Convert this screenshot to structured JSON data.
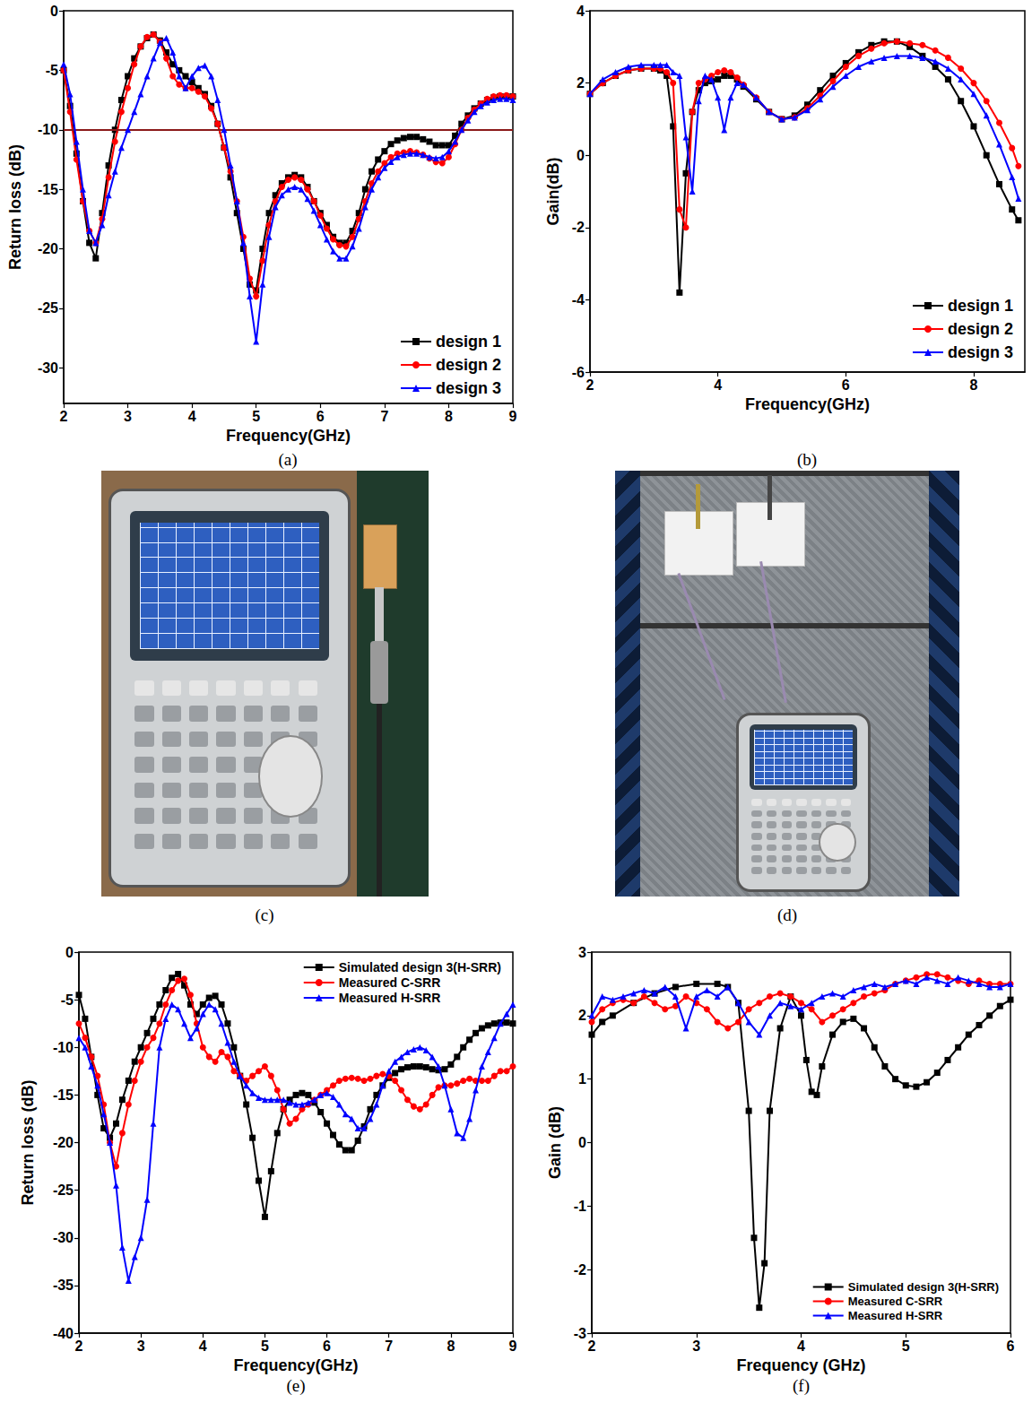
{
  "chart_data": [
    {
      "type": "line",
      "label": "(a)",
      "x_label": "Frequency(GHz)",
      "y_label": "Return loss (dB)",
      "xlim": [
        2,
        9
      ],
      "xticks": [
        2,
        3,
        4,
        5,
        6,
        7,
        8,
        9
      ],
      "ylim": [
        -33,
        0
      ],
      "yticks": [
        -30,
        -25,
        -20,
        -15,
        -10,
        -5,
        0
      ],
      "grid": false,
      "legend": "lower right",
      "reference_line": {
        "value": -10,
        "color": "#8b1a1a"
      },
      "x": [
        2,
        2.1,
        2.2,
        2.3,
        2.4,
        2.5,
        2.6,
        2.7,
        2.8,
        2.9,
        3,
        3.1,
        3.2,
        3.3,
        3.4,
        3.5,
        3.6,
        3.7,
        3.8,
        3.9,
        4,
        4.1,
        4.2,
        4.3,
        4.4,
        4.5,
        4.6,
        4.7,
        4.8,
        4.9,
        5,
        5.1,
        5.2,
        5.3,
        5.4,
        5.5,
        5.6,
        5.7,
        5.8,
        5.9,
        6,
        6.1,
        6.2,
        6.3,
        6.4,
        6.5,
        6.6,
        6.7,
        6.8,
        6.9,
        7,
        7.1,
        7.2,
        7.3,
        7.4,
        7.5,
        7.6,
        7.7,
        7.8,
        7.9,
        8,
        8.1,
        8.2,
        8.3,
        8.4,
        8.5,
        8.6,
        8.7,
        8.8,
        8.9,
        9
      ],
      "series": [
        {
          "name": "design 1",
          "color": "#000000",
          "marker": "square",
          "values": [
            -5,
            -8,
            -12,
            -16,
            -19.5,
            -20.8,
            -17,
            -13,
            -10,
            -7.5,
            -5.5,
            -4,
            -3,
            -2.3,
            -2,
            -2.5,
            -3.5,
            -4.5,
            -5,
            -5.5,
            -6,
            -6.5,
            -7,
            -8,
            -9.5,
            -11.5,
            -14,
            -17,
            -20,
            -23,
            -23.5,
            -20,
            -17,
            -15.5,
            -14.5,
            -14,
            -13.8,
            -14,
            -14.8,
            -16,
            -17,
            -18,
            -19,
            -19.5,
            -19.5,
            -18.5,
            -17,
            -15,
            -13.5,
            -12.5,
            -11.8,
            -11.2,
            -10.9,
            -10.7,
            -10.6,
            -10.6,
            -10.8,
            -11,
            -11.3,
            -11.3,
            -11.3,
            -10.5,
            -9.5,
            -8.8,
            -8.2,
            -7.8,
            -7.5,
            -7.3,
            -7.2,
            -7.2,
            -7.2
          ]
        },
        {
          "name": "design 2",
          "color": "#ff0000",
          "marker": "circle",
          "values": [
            -5,
            -8.5,
            -12.5,
            -16,
            -18.5,
            -19.5,
            -17.5,
            -14,
            -11,
            -8.5,
            -6.5,
            -4.5,
            -3,
            -2.2,
            -2,
            -2.6,
            -4,
            -5.5,
            -6.2,
            -6.5,
            -6.5,
            -6.8,
            -7.2,
            -8.2,
            -9.5,
            -11.5,
            -13.5,
            -16,
            -19,
            -22.5,
            -24,
            -21,
            -18,
            -16,
            -14.8,
            -14.2,
            -14,
            -14.2,
            -15,
            -16,
            -17.2,
            -18.3,
            -19.2,
            -19.7,
            -19.8,
            -19,
            -17.5,
            -16,
            -14.5,
            -13.5,
            -12.8,
            -12.3,
            -12,
            -11.9,
            -11.8,
            -11.9,
            -12.1,
            -12.4,
            -12.7,
            -12.8,
            -12.3,
            -11.2,
            -10,
            -9,
            -8.3,
            -7.8,
            -7.4,
            -7.2,
            -7.1,
            -7.1,
            -7.2
          ]
        },
        {
          "name": "design 3",
          "color": "#0000ff",
          "marker": "triangle",
          "values": [
            -4.5,
            -7,
            -11,
            -15,
            -18.5,
            -19.5,
            -18,
            -15.5,
            -13.5,
            -11.5,
            -10,
            -8.5,
            -7,
            -5.5,
            -4,
            -2.7,
            -2.3,
            -3.5,
            -5.5,
            -6.5,
            -5.5,
            -4.8,
            -4.6,
            -5.5,
            -7.5,
            -10,
            -13,
            -16,
            -19.5,
            -24,
            -27.8,
            -23,
            -19,
            -16.5,
            -15.5,
            -15,
            -14.8,
            -15,
            -15.8,
            -16.8,
            -18,
            -19.2,
            -20.2,
            -20.8,
            -20.8,
            -19.8,
            -18.3,
            -16.5,
            -15,
            -14,
            -13.2,
            -12.7,
            -12.3,
            -12.1,
            -12,
            -12,
            -12.1,
            -12.3,
            -12.4,
            -12.3,
            -11.8,
            -11,
            -10,
            -9.2,
            -8.5,
            -8,
            -7.7,
            -7.5,
            -7.4,
            -7.4,
            -7.5
          ]
        }
      ]
    },
    {
      "type": "line",
      "label": "(b)",
      "x_label": "Frequency(GHz)",
      "y_label": "Gain(dB)",
      "xlim": [
        2,
        8.8
      ],
      "xticks": [
        2,
        4,
        6,
        8
      ],
      "ylim": [
        -6,
        4
      ],
      "yticks": [
        -6,
        -4,
        -2,
        0,
        2,
        4
      ],
      "grid": false,
      "legend": "lower right",
      "x": [
        2,
        2.2,
        2.4,
        2.6,
        2.8,
        3,
        3.1,
        3.2,
        3.3,
        3.4,
        3.5,
        3.6,
        3.7,
        3.8,
        3.9,
        4,
        4.1,
        4.2,
        4.3,
        4.4,
        4.6,
        4.8,
        5,
        5.2,
        5.4,
        5.6,
        5.8,
        6,
        6.2,
        6.4,
        6.6,
        6.8,
        7,
        7.2,
        7.4,
        7.6,
        7.8,
        8,
        8.2,
        8.4,
        8.6,
        8.7
      ],
      "series": [
        {
          "name": "design 1",
          "color": "#000000",
          "marker": "square",
          "values": [
            1.7,
            2.0,
            2.2,
            2.35,
            2.4,
            2.4,
            2.35,
            2.2,
            0.8,
            -3.8,
            -0.5,
            1.2,
            1.8,
            2.0,
            2.05,
            2.1,
            2.2,
            2.2,
            2.1,
            1.9,
            1.55,
            1.2,
            1.0,
            1.1,
            1.4,
            1.8,
            2.2,
            2.55,
            2.85,
            3.05,
            3.15,
            3.15,
            3.0,
            2.75,
            2.45,
            2.1,
            1.5,
            0.8,
            0.0,
            -0.8,
            -1.5,
            -1.8
          ]
        },
        {
          "name": "design 2",
          "color": "#ff0000",
          "marker": "circle",
          "values": [
            1.7,
            2.0,
            2.2,
            2.35,
            2.4,
            2.4,
            2.4,
            2.3,
            2.0,
            -1.5,
            -2.0,
            1.2,
            2.0,
            2.1,
            2.2,
            2.3,
            2.35,
            2.3,
            2.15,
            1.95,
            1.6,
            1.2,
            1.0,
            1.05,
            1.3,
            1.65,
            2.05,
            2.45,
            2.75,
            2.95,
            3.1,
            3.15,
            3.1,
            3.05,
            2.9,
            2.7,
            2.4,
            2.0,
            1.5,
            0.9,
            0.2,
            -0.3
          ]
        },
        {
          "name": "design 3",
          "color": "#0000ff",
          "marker": "triangle",
          "values": [
            1.7,
            2.1,
            2.3,
            2.45,
            2.5,
            2.5,
            2.5,
            2.5,
            2.3,
            2.2,
            0.5,
            -1.0,
            1.5,
            2.2,
            2.1,
            1.6,
            0.7,
            1.6,
            2.0,
            1.95,
            1.6,
            1.2,
            1.0,
            1.05,
            1.25,
            1.55,
            1.9,
            2.2,
            2.45,
            2.6,
            2.7,
            2.75,
            2.75,
            2.7,
            2.6,
            2.4,
            2.1,
            1.7,
            1.1,
            0.3,
            -0.6,
            -1.2
          ]
        }
      ]
    },
    {
      "type": "line",
      "label": "(e)",
      "x_label": "Frequency(GHz)",
      "y_label": "Return loss (dB)",
      "xlim": [
        2,
        9
      ],
      "xticks": [
        2,
        3,
        4,
        5,
        6,
        7,
        8,
        9
      ],
      "ylim": [
        -40,
        0
      ],
      "yticks": [
        -40,
        -35,
        -30,
        -25,
        -20,
        -15,
        -10,
        -5,
        0
      ],
      "grid": false,
      "legend": "upper right",
      "x": [
        2,
        2.1,
        2.2,
        2.3,
        2.4,
        2.5,
        2.6,
        2.7,
        2.8,
        2.9,
        3,
        3.1,
        3.2,
        3.3,
        3.4,
        3.5,
        3.6,
        3.7,
        3.8,
        3.9,
        4,
        4.1,
        4.2,
        4.3,
        4.4,
        4.5,
        4.6,
        4.7,
        4.8,
        4.9,
        5,
        5.1,
        5.2,
        5.3,
        5.4,
        5.5,
        5.6,
        5.7,
        5.8,
        5.9,
        6,
        6.1,
        6.2,
        6.3,
        6.4,
        6.5,
        6.6,
        6.7,
        6.8,
        6.9,
        7,
        7.1,
        7.2,
        7.3,
        7.4,
        7.5,
        7.6,
        7.7,
        7.8,
        7.9,
        8,
        8.1,
        8.2,
        8.3,
        8.4,
        8.5,
        8.6,
        8.7,
        8.8,
        8.9,
        9
      ],
      "series": [
        {
          "name": "Simulated design 3(H-SRR)",
          "color": "#000000",
          "marker": "square",
          "values": [
            -4.5,
            -7,
            -11,
            -15,
            -18.5,
            -19.5,
            -18,
            -15.5,
            -13.5,
            -11.5,
            -10,
            -8.5,
            -7,
            -5.5,
            -4,
            -2.7,
            -2.3,
            -3.5,
            -5.5,
            -6.5,
            -5.5,
            -4.8,
            -4.6,
            -5.5,
            -7.5,
            -10,
            -13,
            -16,
            -19.5,
            -24,
            -27.8,
            -23,
            -19,
            -16.5,
            -15.5,
            -15,
            -14.8,
            -15,
            -15.8,
            -16.8,
            -18,
            -19.2,
            -20.2,
            -20.8,
            -20.8,
            -19.8,
            -18.3,
            -16.5,
            -15,
            -14,
            -13.2,
            -12.7,
            -12.3,
            -12.1,
            -12,
            -12,
            -12.1,
            -12.3,
            -12.4,
            -12.3,
            -11.8,
            -11,
            -10,
            -9.2,
            -8.5,
            -8,
            -7.7,
            -7.5,
            -7.4,
            -7.4,
            -7.5
          ]
        },
        {
          "name": "Measured C-SRR",
          "color": "#ff0000",
          "marker": "circle",
          "values": [
            -7.5,
            -9,
            -11,
            -13,
            -16,
            -20,
            -22.5,
            -19,
            -16,
            -13.5,
            -11.5,
            -10,
            -9,
            -7.5,
            -5.5,
            -4,
            -3,
            -2.8,
            -4.5,
            -7.5,
            -10,
            -11,
            -11.5,
            -10.5,
            -11,
            -12.5,
            -13,
            -13.5,
            -13,
            -12.5,
            -12,
            -13,
            -14.5,
            -16.5,
            -18,
            -17.5,
            -16.5,
            -16,
            -15.5,
            -15,
            -14.5,
            -14,
            -13.5,
            -13.3,
            -13.2,
            -13.3,
            -13.5,
            -13.3,
            -13,
            -12.8,
            -13,
            -13.5,
            -14.5,
            -15.5,
            -16.2,
            -16.5,
            -16,
            -15,
            -14.2,
            -14,
            -14,
            -13.8,
            -13.5,
            -13.3,
            -13.5,
            -13.5,
            -13.5,
            -13,
            -12.5,
            -12.5,
            -12
          ]
        },
        {
          "name": "Measured H-SRR",
          "color": "#0000ff",
          "marker": "triangle",
          "values": [
            -9,
            -10,
            -12,
            -14,
            -17,
            -20,
            -24.5,
            -31,
            -34.5,
            -32,
            -30,
            -26,
            -18,
            -10,
            -7,
            -5.5,
            -6,
            -7.5,
            -9,
            -8,
            -6.5,
            -5.5,
            -6,
            -7.5,
            -9.5,
            -11.5,
            -13,
            -14,
            -14.8,
            -15.3,
            -15.5,
            -15.5,
            -15.5,
            -15.5,
            -15.8,
            -16,
            -16,
            -15.8,
            -15.5,
            -15,
            -14.8,
            -15.2,
            -16,
            -17,
            -17.5,
            -18.5,
            -18.5,
            -17.5,
            -16,
            -14,
            -12.5,
            -11.5,
            -11,
            -10.5,
            -10.2,
            -10,
            -10.3,
            -11,
            -12,
            -14,
            -16.5,
            -19,
            -19.5,
            -17.5,
            -14.5,
            -12,
            -10.5,
            -9,
            -7.5,
            -6.5,
            -5.5
          ]
        }
      ]
    },
    {
      "type": "line",
      "label": "(f)",
      "x_label": "Frequency (GHz)",
      "y_label": "Gain (dB)",
      "xlim": [
        2,
        6
      ],
      "xticks": [
        2,
        3,
        4,
        5,
        6
      ],
      "ylim": [
        -3,
        3
      ],
      "yticks": [
        -3,
        -2,
        -1,
        0,
        1,
        2,
        3
      ],
      "grid": false,
      "legend": "lower right",
      "x": [
        2,
        2.1,
        2.2,
        2.3,
        2.4,
        2.5,
        2.6,
        2.7,
        2.8,
        2.9,
        3,
        3.1,
        3.2,
        3.3,
        3.4,
        3.5,
        3.6,
        3.7,
        3.8,
        3.9,
        4,
        4.1,
        4.2,
        4.3,
        4.4,
        4.5,
        4.6,
        4.7,
        4.8,
        4.9,
        5,
        5.1,
        5.2,
        5.3,
        5.4,
        5.5,
        5.6,
        5.7,
        5.8,
        5.9,
        6
      ],
      "series": [
        {
          "name": "Simulated design 3(H-SRR)",
          "color": "#000000",
          "marker": "square",
          "x": [
            2,
            2.1,
            2.2,
            2.4,
            2.6,
            2.8,
            3,
            3.2,
            3.3,
            3.4,
            3.5,
            3.55,
            3.6,
            3.65,
            3.7,
            3.8,
            3.9,
            4,
            4.05,
            4.1,
            4.15,
            4.2,
            4.3,
            4.4,
            4.5,
            4.6,
            4.7,
            4.8,
            4.9,
            5,
            5.1,
            5.2,
            5.3,
            5.4,
            5.5,
            5.6,
            5.7,
            5.8,
            5.9,
            6
          ],
          "values": [
            1.7,
            1.9,
            2.0,
            2.2,
            2.35,
            2.45,
            2.5,
            2.5,
            2.45,
            2.2,
            0.5,
            -1.5,
            -2.6,
            -1.9,
            0.5,
            1.8,
            2.3,
            2.0,
            1.3,
            0.8,
            0.75,
            1.2,
            1.7,
            1.9,
            1.95,
            1.8,
            1.5,
            1.2,
            1.0,
            0.9,
            0.88,
            0.95,
            1.1,
            1.3,
            1.5,
            1.7,
            1.85,
            2.0,
            2.15,
            2.25
          ]
        },
        {
          "name": "Measured C-SRR",
          "color": "#ff0000",
          "marker": "circle",
          "values": [
            1.9,
            2.1,
            2.2,
            2.25,
            2.2,
            2.3,
            2.2,
            2.1,
            2.15,
            2.3,
            2.2,
            2.1,
            1.9,
            1.8,
            1.9,
            2.1,
            2.2,
            2.3,
            2.35,
            2.3,
            2.2,
            2.1,
            1.9,
            2.0,
            2.1,
            2.2,
            2.3,
            2.35,
            2.4,
            2.5,
            2.55,
            2.6,
            2.65,
            2.65,
            2.6,
            2.55,
            2.5,
            2.55,
            2.5,
            2.5,
            2.5
          ]
        },
        {
          "name": "Measured H-SRR",
          "color": "#0000ff",
          "marker": "triangle",
          "values": [
            2.0,
            2.3,
            2.25,
            2.3,
            2.35,
            2.4,
            2.35,
            2.45,
            2.3,
            1.8,
            2.3,
            2.4,
            2.3,
            2.45,
            2.2,
            1.9,
            1.7,
            2.0,
            2.2,
            2.15,
            2.1,
            2.2,
            2.3,
            2.35,
            2.3,
            2.4,
            2.45,
            2.5,
            2.45,
            2.5,
            2.55,
            2.5,
            2.6,
            2.55,
            2.5,
            2.6,
            2.55,
            2.5,
            2.45,
            2.45,
            2.5
          ]
        }
      ]
    }
  ],
  "photos": [
    {
      "label": "(c)"
    },
    {
      "label": "(d)"
    }
  ]
}
